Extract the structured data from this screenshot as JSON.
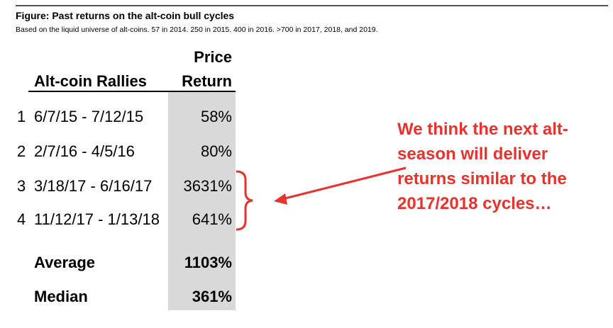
{
  "figure": {
    "title": "Figure: Past returns on the alt-coin bull cycles",
    "subtitle": "Based on the liquid universe of alt-coins. 57 in 2014.  250 in 2015.  400 in 2016.  >700 in 2017, 2018, and 2019."
  },
  "table": {
    "col1_header": "Alt-coin Rallies",
    "col2_header_line1": "Price",
    "col2_header_line2": "Return",
    "rows": [
      {
        "num": "1",
        "period": "6/7/15 - 7/12/15",
        "ret": "58%"
      },
      {
        "num": "2",
        "period": "2/7/16 - 4/5/16",
        "ret": "80%"
      },
      {
        "num": "3",
        "period": "3/18/17 - 6/16/17",
        "ret": "3631%"
      },
      {
        "num": "4",
        "period": "11/12/17 - 1/13/18",
        "ret": "641%"
      }
    ],
    "summary": [
      {
        "label": "Average",
        "value": "1103%"
      },
      {
        "label": "Median",
        "value": "361%"
      }
    ]
  },
  "callout": {
    "lines": [
      "We think the next alt-",
      "season will deliver",
      "returns similar to the",
      "2017/2018 cycles…"
    ],
    "color": "#e8322e"
  }
}
